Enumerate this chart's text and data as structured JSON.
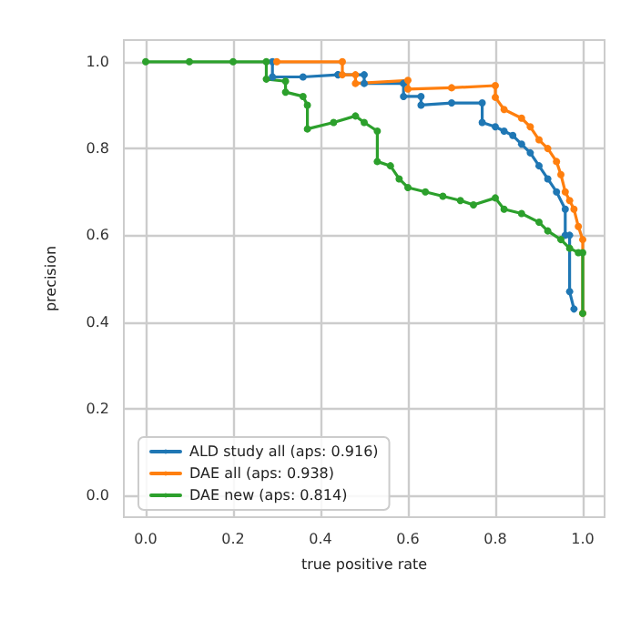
{
  "chart_data": {
    "type": "line",
    "xlabel": "true positive rate",
    "ylabel": "precision",
    "xlim": [
      -0.05,
      1.05
    ],
    "ylim": [
      -0.05,
      1.05
    ],
    "xticks": [
      {
        "value": 0,
        "label": "0.0"
      },
      {
        "value": 0.2,
        "label": "0.2"
      },
      {
        "value": 0.4,
        "label": "0.4"
      },
      {
        "value": 0.6,
        "label": "0.6"
      },
      {
        "value": 0.8,
        "label": "0.8"
      },
      {
        "value": 1,
        "label": "1.0"
      }
    ],
    "yticks": [
      {
        "value": 0,
        "label": "0.0"
      },
      {
        "value": 0.2,
        "label": "0.2"
      },
      {
        "value": 0.4,
        "label": "0.4"
      },
      {
        "value": 0.6,
        "label": "0.6"
      },
      {
        "value": 0.8,
        "label": "0.8"
      },
      {
        "value": 1,
        "label": "1.0"
      }
    ],
    "grid": true,
    "legend": "bottom left",
    "marker": "circle",
    "line_style": "solid",
    "series": [
      {
        "name": "ALD study all (aps: 0.916)",
        "color": "#1f77b4",
        "x": [
          0.29,
          0.29,
          0.36,
          0.44,
          0.44,
          0.5,
          0.5,
          0.59,
          0.59,
          0.63,
          0.63,
          0.7,
          0.77,
          0.77,
          0.8,
          0.82,
          0.84,
          0.86,
          0.88,
          0.9,
          0.92,
          0.94,
          0.96,
          0.96,
          0.97,
          0.97,
          0.98
        ],
        "values": [
          1,
          0.965,
          0.965,
          0.97,
          0.97,
          0.97,
          0.95,
          0.95,
          0.92,
          0.92,
          0.9,
          0.905,
          0.905,
          0.86,
          0.85,
          0.84,
          0.83,
          0.81,
          0.79,
          0.76,
          0.73,
          0.7,
          0.66,
          0.6,
          0.6,
          0.47,
          0.43
        ]
      },
      {
        "name": "DAE all (aps: 0.938)",
        "color": "#ff7f0e",
        "x": [
          0.3,
          0.45,
          0.45,
          0.48,
          0.48,
          0.6,
          0.6,
          0.7,
          0.8,
          0.8,
          0.82,
          0.86,
          0.88,
          0.9,
          0.92,
          0.94,
          0.95,
          0.96,
          0.97,
          0.98,
          0.99,
          1,
          1
        ],
        "values": [
          1,
          1,
          0.97,
          0.97,
          0.95,
          0.957,
          0.937,
          0.94,
          0.945,
          0.918,
          0.89,
          0.87,
          0.85,
          0.82,
          0.8,
          0.77,
          0.74,
          0.7,
          0.68,
          0.66,
          0.62,
          0.59,
          0.42
        ]
      },
      {
        "name": "DAE new (aps: 0.814)",
        "color": "#2ca02c",
        "x": [
          0,
          0.1,
          0.2,
          0.276,
          0.276,
          0.32,
          0.32,
          0.36,
          0.37,
          0.37,
          0.43,
          0.48,
          0.5,
          0.53,
          0.53,
          0.56,
          0.58,
          0.6,
          0.64,
          0.68,
          0.72,
          0.75,
          0.8,
          0.82,
          0.86,
          0.9,
          0.92,
          0.95,
          0.97,
          0.99,
          1,
          1
        ],
        "values": [
          1,
          1,
          1,
          1,
          0.96,
          0.955,
          0.93,
          0.92,
          0.9,
          0.845,
          0.86,
          0.875,
          0.86,
          0.84,
          0.77,
          0.76,
          0.73,
          0.71,
          0.7,
          0.69,
          0.68,
          0.67,
          0.686,
          0.66,
          0.65,
          0.63,
          0.61,
          0.59,
          0.57,
          0.56,
          0.56,
          0.42
        ]
      }
    ]
  }
}
